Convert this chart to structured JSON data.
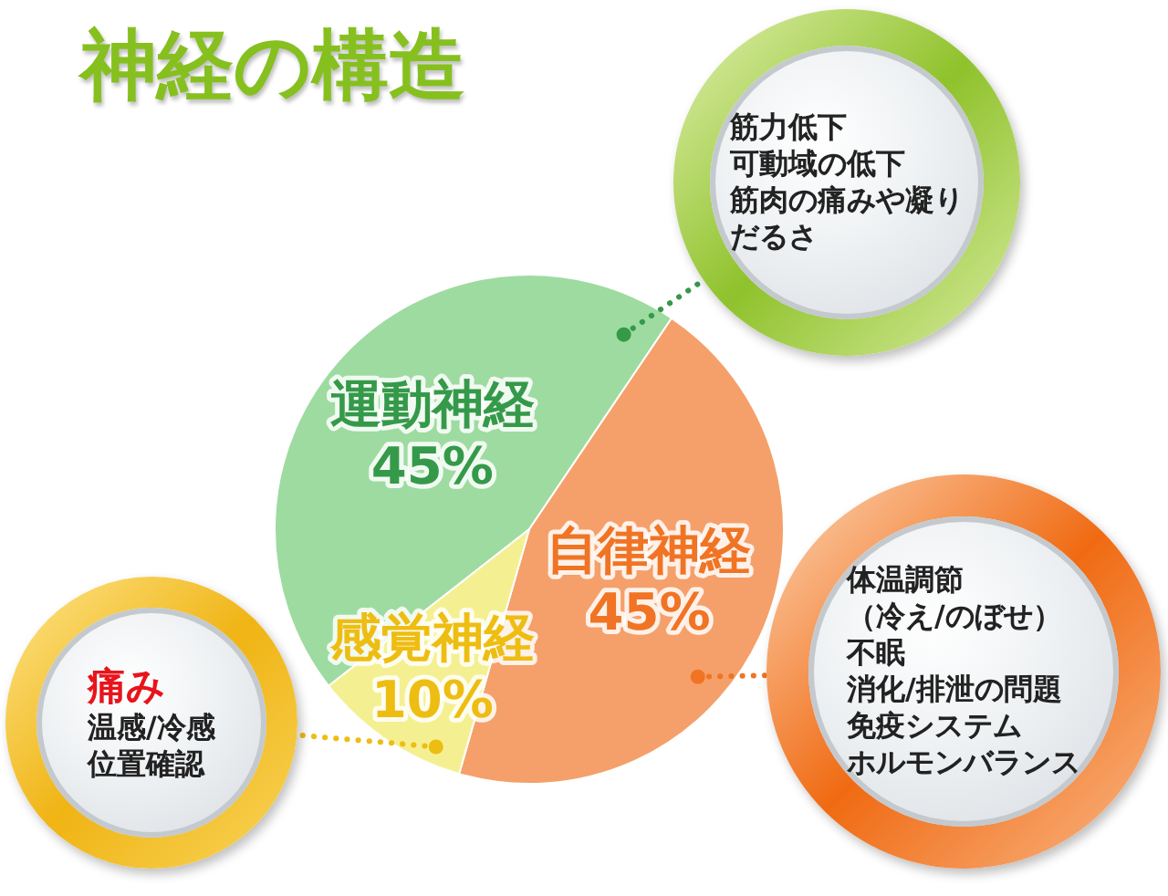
{
  "chart_data": {
    "type": "pie",
    "title": "神経の構造",
    "categories": [
      "運動神経",
      "自律神経",
      "感覚神経"
    ],
    "values": [
      45,
      45,
      10
    ],
    "colors": [
      "#9edba1",
      "#f5a06a",
      "#f4f092"
    ],
    "value_labels": [
      "45%",
      "45%",
      "10%"
    ],
    "legend": false,
    "annotations": [
      "筋力低下",
      "可動域の低下",
      "筋肉の痛みや凝り",
      "だるさ",
      "体温調節",
      "（冷え/のぼせ）",
      "不眠",
      "消化/排泄の問題",
      "免疫システム",
      "ホルモンバランス",
      "痛み",
      "温感/冷感",
      "位置確認"
    ]
  }
}
